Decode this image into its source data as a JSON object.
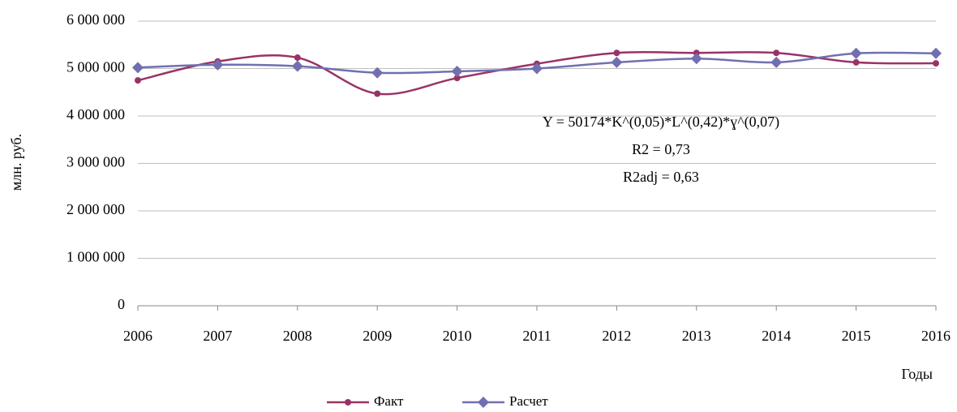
{
  "chart_data": {
    "type": "line",
    "y_label": "млн. руб.",
    "x_label": "Годы",
    "annotation": [
      "Y = 50174*K^(0,05)*L^(0,42)*ɣ^(0,07)",
      "R2 = 0,73",
      "R2adj = 0,63"
    ],
    "categories": [
      "2006",
      "2007",
      "2008",
      "2009",
      "2010",
      "2011",
      "2012",
      "2013",
      "2014",
      "2015",
      "2016"
    ],
    "series": [
      {
        "name": "Факт",
        "color": "#993366",
        "marker": "circle",
        "values": [
          4750000,
          5150000,
          5230000,
          4470000,
          4800000,
          5100000,
          5330000,
          5330000,
          5330000,
          5130000,
          5110000
        ]
      },
      {
        "name": "Расчет",
        "color": "#7070b0",
        "marker": "diamond",
        "values": [
          5020000,
          5080000,
          5050000,
          4910000,
          4940000,
          5000000,
          5130000,
          5210000,
          5130000,
          5320000,
          5320000
        ]
      }
    ],
    "ylim": [
      0,
      6000000
    ],
    "yticks": [
      0,
      {
        "value": 1000000,
        "label": "1 000 000"
      },
      {
        "value": 2000000,
        "label": "2 000 000"
      },
      {
        "value": 3000000,
        "label": "3 000 000"
      },
      {
        "value": 4000000,
        "label": "4 000 000"
      },
      {
        "value": 5000000,
        "label": "5 000 000"
      },
      {
        "value": 6000000,
        "label": "6 000 000"
      }
    ],
    "grid": true,
    "smooth": true,
    "legend": "bottom"
  }
}
